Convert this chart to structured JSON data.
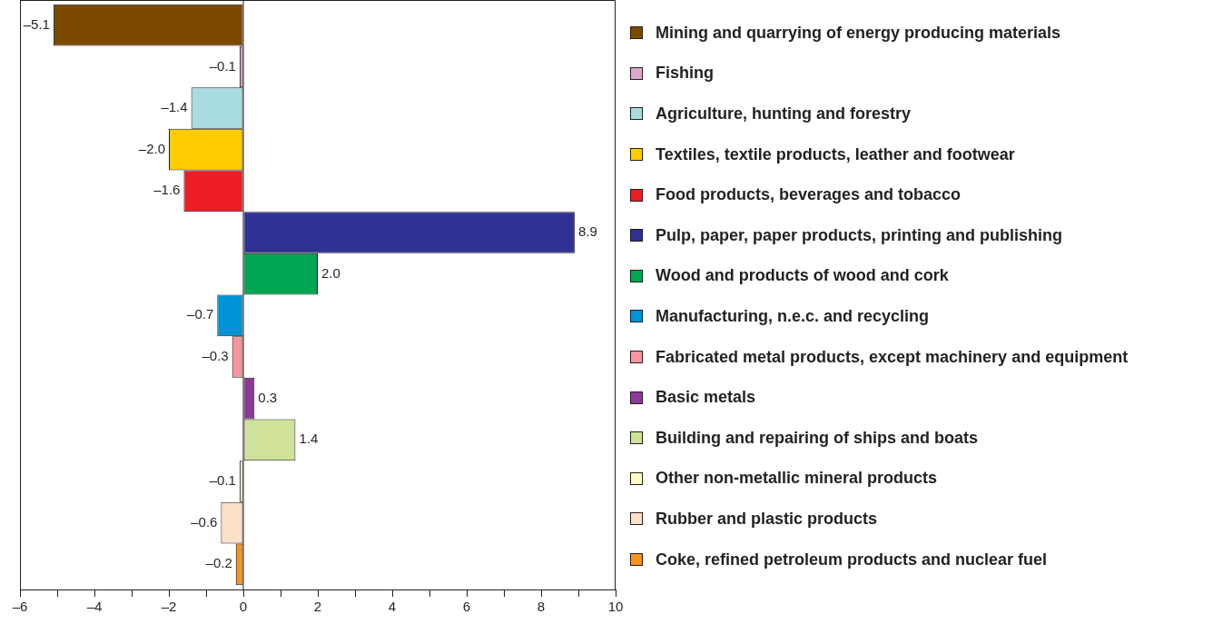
{
  "chart_data": {
    "type": "bar",
    "orientation": "horizontal",
    "categories": [
      null
    ],
    "legend": "right",
    "tick_labels": "x",
    "xlim": [
      -6,
      10
    ],
    "xticks": [
      {
        "value": -6,
        "label": "–6"
      },
      {
        "value": -5,
        "label": null
      },
      {
        "value": -4,
        "label": "–4"
      },
      {
        "value": -3,
        "label": null
      },
      {
        "value": -2,
        "label": "–2"
      },
      {
        "value": -1,
        "label": null
      },
      0,
      {
        "value": 1,
        "label": null
      },
      2,
      {
        "value": 3,
        "label": null
      },
      4,
      {
        "value": 5,
        "label": null
      },
      6,
      {
        "value": 7,
        "label": null
      },
      8,
      {
        "value": 9,
        "label": null
      },
      10
    ],
    "series": [
      {
        "name": "Mining and quarrying of energy producing materials",
        "color": "#7b4a00",
        "values": [
          -5.1
        ],
        "value_labels": [
          "–5.1"
        ]
      },
      {
        "name": "Fishing",
        "color": "#dda6cf",
        "values": [
          -0.1
        ],
        "value_labels": [
          "–0.1"
        ]
      },
      {
        "name": "Agriculture, hunting and forestry",
        "color": "#a8dce0",
        "values": [
          -1.4
        ],
        "value_labels": [
          "–1.4"
        ]
      },
      {
        "name": "Textiles, textile products, leather and footwear",
        "color": "#ffcc00",
        "values": [
          -2.0
        ],
        "value_labels": [
          "–2.0"
        ]
      },
      {
        "name": "Food products, beverages and tobacco",
        "color": "#ee1c25",
        "values": [
          -1.6
        ],
        "value_labels": [
          "–1.6"
        ]
      },
      {
        "name": "Pulp, paper, paper products, printing and publishing",
        "color": "#2e3192",
        "values": [
          8.9
        ],
        "value_labels": [
          "8.9"
        ]
      },
      {
        "name": "Wood and products of wood and cork",
        "color": "#00a651",
        "values": [
          2.0
        ],
        "value_labels": [
          "2.0"
        ]
      },
      {
        "name": "Manufacturing, n.e.c. and recycling",
        "color": "#0093d8",
        "values": [
          -0.7
        ],
        "value_labels": [
          "–0.7"
        ]
      },
      {
        "name": "Fabricated metal products, except machinery and equipment",
        "color": "#f6969d",
        "values": [
          -0.3
        ],
        "value_labels": [
          "–0.3"
        ]
      },
      {
        "name": "Basic metals",
        "color": "#8b3a96",
        "values": [
          0.3
        ],
        "value_labels": [
          "0.3"
        ]
      },
      {
        "name": "Building and repairing of ships and boats",
        "color": "#d0e29a",
        "values": [
          1.4
        ],
        "value_labels": [
          "1.4"
        ]
      },
      {
        "name": "Other non-metallic mineral products",
        "color": "#fffbc6",
        "values": [
          -0.1
        ],
        "value_labels": [
          "–0.1"
        ]
      },
      {
        "name": "Rubber and plastic products",
        "color": "#fde0c8",
        "values": [
          -0.6
        ],
        "value_labels": [
          "–0.6"
        ]
      },
      {
        "name": "Coke, refined petroleum products and nuclear fuel",
        "color": "#f7941d",
        "values": [
          -0.2
        ],
        "value_labels": [
          "–0.2"
        ]
      }
    ]
  }
}
